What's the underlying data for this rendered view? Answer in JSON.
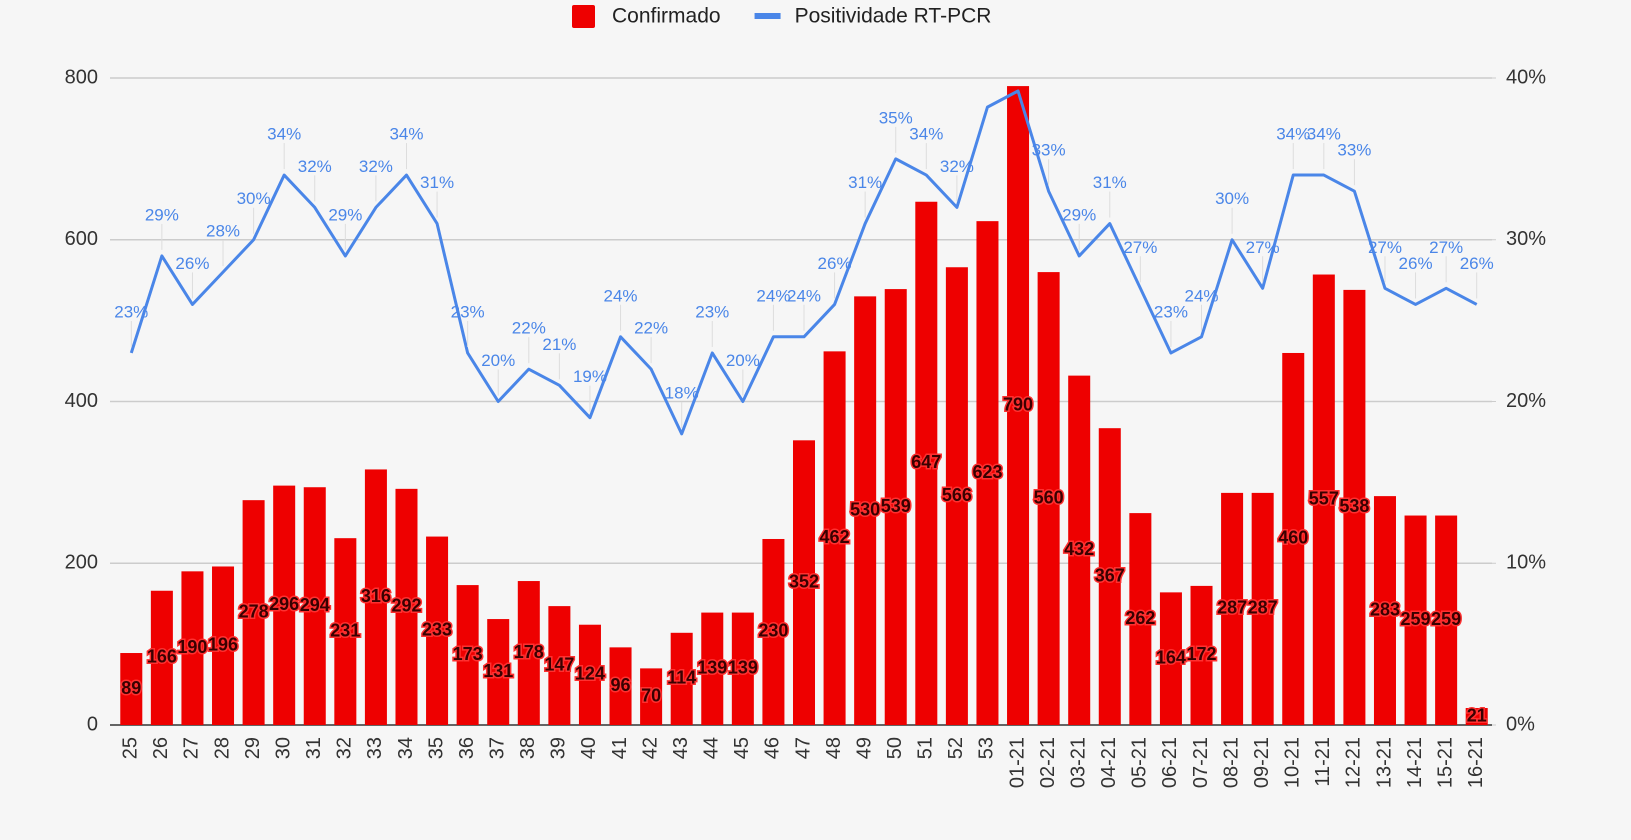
{
  "chart_data": {
    "type": "bar-line",
    "categories": [
      "25",
      "26",
      "27",
      "28",
      "29",
      "30",
      "31",
      "32",
      "33",
      "34",
      "35",
      "36",
      "37",
      "38",
      "39",
      "40",
      "41",
      "42",
      "43",
      "44",
      "45",
      "46",
      "47",
      "48",
      "49",
      "50",
      "51",
      "52",
      "53",
      "01-21",
      "02-21",
      "03-21",
      "04-21",
      "05-21",
      "06-21",
      "07-21",
      "08-21",
      "09-21",
      "10-21",
      "11-21",
      "12-21",
      "13-21",
      "14-21",
      "15-21",
      "16-21"
    ],
    "series": [
      {
        "name": "Confirmado",
        "type": "bar",
        "color": "#ee0000",
        "values": [
          89,
          166,
          190,
          196,
          278,
          296,
          294,
          231,
          316,
          292,
          233,
          173,
          131,
          178,
          147,
          124,
          96,
          70,
          114,
          139,
          139,
          230,
          352,
          462,
          530,
          539,
          647,
          566,
          623,
          790,
          560,
          432,
          367,
          262,
          164,
          172,
          287,
          287,
          460,
          557,
          538,
          283,
          259,
          259,
          21
        ]
      },
      {
        "name": "Positividade RT-PCR",
        "type": "line",
        "axis": "y2",
        "color": "#4a86e8",
        "values": [
          23,
          29,
          26,
          28,
          30,
          34,
          32,
          29,
          32,
          34,
          31,
          23,
          20,
          22,
          21,
          19,
          24,
          22,
          18,
          23,
          20,
          24,
          24,
          26,
          31,
          35,
          34,
          32,
          38.2,
          39.2,
          33,
          29,
          31,
          27,
          23,
          24,
          30,
          27,
          34,
          34,
          33,
          27,
          26,
          27,
          26
        ],
        "value_labels": [
          "23%",
          "29%",
          "26%",
          "28%",
          "30%",
          "34%",
          "32%",
          "29%",
          "32%",
          "34%",
          "31%",
          "23%",
          "20%",
          "22%",
          "21%",
          "19%",
          "24%",
          "22%",
          "18%",
          "23%",
          "20%",
          "24%",
          "24%",
          "26%",
          "31%",
          "35%",
          "34%",
          "32%",
          null,
          null,
          "33%",
          "29%",
          "31%",
          "27%",
          "23%",
          "24%",
          "30%",
          "27%",
          "34%",
          "34%",
          "33%",
          "27%",
          "26%",
          "27%",
          "26%"
        ]
      }
    ],
    "ylim": [
      0,
      800
    ],
    "yticks": [
      0,
      200,
      400,
      600,
      800
    ],
    "y2lim": [
      0,
      40
    ],
    "y2ticks": [
      {
        "value": 0,
        "label": "0%"
      },
      {
        "value": 10,
        "label": "10%"
      },
      {
        "value": 20,
        "label": "20%"
      },
      {
        "value": 30,
        "label": "30%"
      },
      {
        "value": 40,
        "label": "40%"
      }
    ],
    "grid": true,
    "legend": "top"
  }
}
